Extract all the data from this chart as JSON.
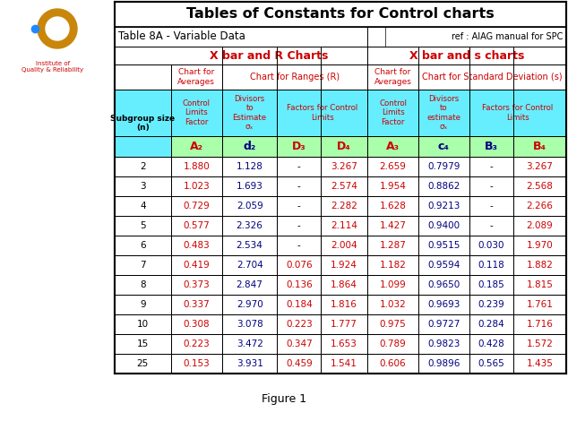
{
  "title": "Tables of Constants for Control charts",
  "subtitle": "Table 8A - Variable Data",
  "ref": "ref : AIAG manual for SPC",
  "section1": "X bar and R Charts",
  "section2": "X bar and s charts",
  "col_headers": [
    "A₂",
    "d₂",
    "D₃",
    "D₄",
    "A₃",
    "c₄",
    "B₃",
    "B₄"
  ],
  "col_header_colors": [
    "red",
    "darkblue",
    "red",
    "red",
    "red",
    "darkblue",
    "darkblue",
    "red"
  ],
  "subgroup_sizes": [
    2,
    3,
    4,
    5,
    6,
    7,
    8,
    9,
    10,
    15,
    25
  ],
  "data": [
    [
      "1.880",
      "1.128",
      "-",
      "3.267",
      "2.659",
      "0.7979",
      "-",
      "3.267"
    ],
    [
      "1.023",
      "1.693",
      "-",
      "2.574",
      "1.954",
      "0.8862",
      "-",
      "2.568"
    ],
    [
      "0.729",
      "2.059",
      "-",
      "2.282",
      "1.628",
      "0.9213",
      "-",
      "2.266"
    ],
    [
      "0.577",
      "2.326",
      "-",
      "2.114",
      "1.427",
      "0.9400",
      "-",
      "2.089"
    ],
    [
      "0.483",
      "2.534",
      "-",
      "2.004",
      "1.287",
      "0.9515",
      "0.030",
      "1.970"
    ],
    [
      "0.419",
      "2.704",
      "0.076",
      "1.924",
      "1.182",
      "0.9594",
      "0.118",
      "1.882"
    ],
    [
      "0.373",
      "2.847",
      "0.136",
      "1.864",
      "1.099",
      "0.9650",
      "0.185",
      "1.815"
    ],
    [
      "0.337",
      "2.970",
      "0.184",
      "1.816",
      "1.032",
      "0.9693",
      "0.239",
      "1.761"
    ],
    [
      "0.308",
      "3.078",
      "0.223",
      "1.777",
      "0.975",
      "0.9727",
      "0.284",
      "1.716"
    ],
    [
      "0.223",
      "3.472",
      "0.347",
      "1.653",
      "0.789",
      "0.9823",
      "0.428",
      "1.572"
    ],
    [
      "0.153",
      "3.931",
      "0.459",
      "1.541",
      "0.606",
      "0.9896",
      "0.565",
      "1.435"
    ]
  ],
  "data_colors": [
    [
      "red",
      "darkblue",
      "black",
      "red",
      "red",
      "darkblue",
      "black",
      "red"
    ],
    [
      "red",
      "darkblue",
      "black",
      "red",
      "red",
      "darkblue",
      "black",
      "red"
    ],
    [
      "red",
      "darkblue",
      "black",
      "red",
      "red",
      "darkblue",
      "black",
      "red"
    ],
    [
      "red",
      "darkblue",
      "black",
      "red",
      "red",
      "darkblue",
      "black",
      "red"
    ],
    [
      "red",
      "darkblue",
      "black",
      "red",
      "red",
      "darkblue",
      "darkblue",
      "red"
    ],
    [
      "red",
      "darkblue",
      "red",
      "red",
      "red",
      "darkblue",
      "darkblue",
      "red"
    ],
    [
      "red",
      "darkblue",
      "red",
      "red",
      "red",
      "darkblue",
      "darkblue",
      "red"
    ],
    [
      "red",
      "darkblue",
      "red",
      "red",
      "red",
      "darkblue",
      "darkblue",
      "red"
    ],
    [
      "red",
      "darkblue",
      "red",
      "red",
      "red",
      "darkblue",
      "darkblue",
      "red"
    ],
    [
      "red",
      "darkblue",
      "red",
      "red",
      "red",
      "darkblue",
      "darkblue",
      "red"
    ],
    [
      "red",
      "darkblue",
      "red",
      "red",
      "red",
      "darkblue",
      "darkblue",
      "red"
    ]
  ],
  "figure_caption": "Figure 1",
  "logo_text": "Institute of\nQuality & Reliability",
  "cyan_bg": "#66EEFF",
  "green_bg": "#AAFFAA",
  "white_bg": "#FFFFFF",
  "dark_red": "#CC0000",
  "navy": "#000080"
}
